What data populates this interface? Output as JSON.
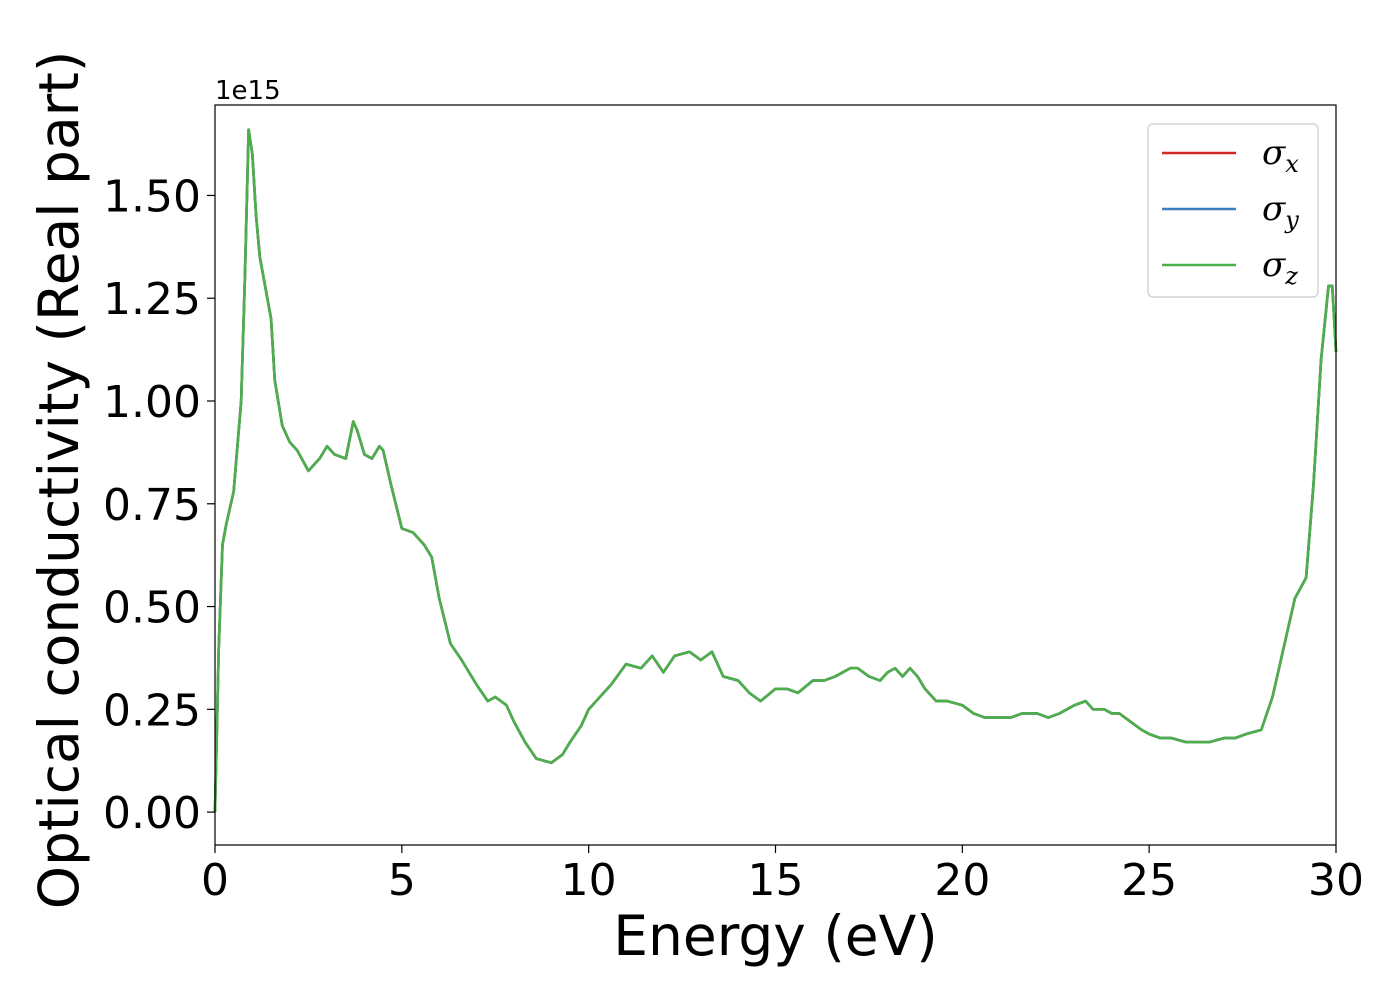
{
  "chart_data": {
    "type": "line",
    "title": "",
    "xlabel": "Energy (eV)",
    "ylabel": "Optical conductivity (Real part)",
    "y_offset_text": "1e15",
    "xlim": [
      0,
      30
    ],
    "ylim": [
      -0.08,
      1.72
    ],
    "xticks": [
      0,
      5,
      10,
      15,
      20,
      25,
      30
    ],
    "xtick_labels": [
      "0",
      "5",
      "10",
      "15",
      "20",
      "25",
      "30"
    ],
    "yticks": [
      0.0,
      0.25,
      0.5,
      0.75,
      1.0,
      1.25,
      1.5
    ],
    "ytick_labels": [
      "0.00",
      "0.25",
      "0.50",
      "0.75",
      "1.00",
      "1.25",
      "1.50"
    ],
    "grid": false,
    "legend_position": "top-right",
    "x": [
      0,
      0.1,
      0.2,
      0.3,
      0.5,
      0.7,
      0.8,
      0.9,
      1.0,
      1.1,
      1.2,
      1.3,
      1.5,
      1.6,
      1.8,
      2.0,
      2.2,
      2.5,
      2.8,
      3.0,
      3.2,
      3.5,
      3.7,
      3.8,
      4.0,
      4.2,
      4.4,
      4.5,
      4.7,
      5.0,
      5.3,
      5.6,
      5.8,
      6.0,
      6.3,
      6.6,
      7.0,
      7.3,
      7.5,
      7.8,
      8.0,
      8.3,
      8.6,
      9.0,
      9.3,
      9.5,
      9.8,
      10.0,
      10.3,
      10.6,
      11.0,
      11.4,
      11.7,
      12.0,
      12.3,
      12.7,
      13.0,
      13.3,
      13.6,
      14.0,
      14.3,
      14.6,
      15.0,
      15.3,
      15.6,
      16.0,
      16.3,
      16.6,
      17.0,
      17.2,
      17.5,
      17.8,
      18.0,
      18.2,
      18.4,
      18.6,
      18.8,
      19.0,
      19.3,
      19.6,
      20.0,
      20.3,
      20.6,
      21.0,
      21.3,
      21.6,
      22.0,
      22.3,
      22.6,
      23.0,
      23.3,
      23.5,
      23.8,
      24.0,
      24.2,
      24.5,
      24.8,
      25.0,
      25.3,
      25.6,
      26.0,
      26.3,
      26.6,
      27.0,
      27.3,
      27.6,
      28.0,
      28.3,
      28.6,
      28.9,
      29.2,
      29.4,
      29.6,
      29.8,
      29.9,
      30.0
    ],
    "series": [
      {
        "name": "σx",
        "color": "#d62728",
        "values": [
          0.0,
          0.4,
          0.65,
          0.7,
          0.78,
          1.0,
          1.3,
          1.66,
          1.6,
          1.45,
          1.35,
          1.3,
          1.2,
          1.05,
          0.94,
          0.9,
          0.88,
          0.83,
          0.86,
          0.89,
          0.87,
          0.86,
          0.95,
          0.93,
          0.87,
          0.86,
          0.89,
          0.88,
          0.8,
          0.69,
          0.68,
          0.65,
          0.62,
          0.52,
          0.41,
          0.37,
          0.31,
          0.27,
          0.28,
          0.26,
          0.22,
          0.17,
          0.13,
          0.12,
          0.14,
          0.17,
          0.21,
          0.25,
          0.28,
          0.31,
          0.36,
          0.35,
          0.38,
          0.34,
          0.38,
          0.39,
          0.37,
          0.39,
          0.33,
          0.32,
          0.29,
          0.27,
          0.3,
          0.3,
          0.29,
          0.32,
          0.32,
          0.33,
          0.35,
          0.35,
          0.33,
          0.32,
          0.34,
          0.35,
          0.33,
          0.35,
          0.33,
          0.3,
          0.27,
          0.27,
          0.26,
          0.24,
          0.23,
          0.23,
          0.23,
          0.24,
          0.24,
          0.23,
          0.24,
          0.26,
          0.27,
          0.25,
          0.25,
          0.24,
          0.24,
          0.22,
          0.2,
          0.19,
          0.18,
          0.18,
          0.17,
          0.17,
          0.17,
          0.18,
          0.18,
          0.19,
          0.2,
          0.28,
          0.4,
          0.52,
          0.57,
          0.8,
          1.1,
          1.28,
          1.28,
          1.12
        ]
      },
      {
        "name": "σy",
        "color": "#3a7ebf",
        "values": [
          0.0,
          0.4,
          0.65,
          0.7,
          0.78,
          1.0,
          1.3,
          1.66,
          1.6,
          1.45,
          1.35,
          1.3,
          1.2,
          1.05,
          0.94,
          0.9,
          0.88,
          0.83,
          0.86,
          0.89,
          0.87,
          0.86,
          0.95,
          0.93,
          0.87,
          0.86,
          0.89,
          0.88,
          0.8,
          0.69,
          0.68,
          0.65,
          0.62,
          0.52,
          0.41,
          0.37,
          0.31,
          0.27,
          0.28,
          0.26,
          0.22,
          0.17,
          0.13,
          0.12,
          0.14,
          0.17,
          0.21,
          0.25,
          0.28,
          0.31,
          0.36,
          0.35,
          0.38,
          0.34,
          0.38,
          0.39,
          0.37,
          0.39,
          0.33,
          0.32,
          0.29,
          0.27,
          0.3,
          0.3,
          0.29,
          0.32,
          0.32,
          0.33,
          0.35,
          0.35,
          0.33,
          0.32,
          0.34,
          0.35,
          0.33,
          0.35,
          0.33,
          0.3,
          0.27,
          0.27,
          0.26,
          0.24,
          0.23,
          0.23,
          0.23,
          0.24,
          0.24,
          0.23,
          0.24,
          0.26,
          0.27,
          0.25,
          0.25,
          0.24,
          0.24,
          0.22,
          0.2,
          0.19,
          0.18,
          0.18,
          0.17,
          0.17,
          0.17,
          0.18,
          0.18,
          0.19,
          0.2,
          0.28,
          0.4,
          0.52,
          0.57,
          0.8,
          1.1,
          1.28,
          1.28,
          1.12
        ]
      },
      {
        "name": "σz",
        "color": "#4daf4a",
        "values": [
          0.0,
          0.4,
          0.65,
          0.7,
          0.78,
          1.0,
          1.3,
          1.66,
          1.6,
          1.45,
          1.35,
          1.3,
          1.2,
          1.05,
          0.94,
          0.9,
          0.88,
          0.83,
          0.86,
          0.89,
          0.87,
          0.86,
          0.95,
          0.93,
          0.87,
          0.86,
          0.89,
          0.88,
          0.8,
          0.69,
          0.68,
          0.65,
          0.62,
          0.52,
          0.41,
          0.37,
          0.31,
          0.27,
          0.28,
          0.26,
          0.22,
          0.17,
          0.13,
          0.12,
          0.14,
          0.17,
          0.21,
          0.25,
          0.28,
          0.31,
          0.36,
          0.35,
          0.38,
          0.34,
          0.38,
          0.39,
          0.37,
          0.39,
          0.33,
          0.32,
          0.29,
          0.27,
          0.3,
          0.3,
          0.29,
          0.32,
          0.32,
          0.33,
          0.35,
          0.35,
          0.33,
          0.32,
          0.34,
          0.35,
          0.33,
          0.35,
          0.33,
          0.3,
          0.27,
          0.27,
          0.26,
          0.24,
          0.23,
          0.23,
          0.23,
          0.24,
          0.24,
          0.23,
          0.24,
          0.26,
          0.27,
          0.25,
          0.25,
          0.24,
          0.24,
          0.22,
          0.2,
          0.19,
          0.18,
          0.18,
          0.17,
          0.17,
          0.17,
          0.18,
          0.18,
          0.19,
          0.2,
          0.28,
          0.4,
          0.52,
          0.57,
          0.8,
          1.1,
          1.28,
          1.28,
          1.12
        ]
      }
    ],
    "legend": [
      {
        "symbol": "σ",
        "sub": "x",
        "color": "#d62728"
      },
      {
        "symbol": "σ",
        "sub": "y",
        "color": "#3a7ebf"
      },
      {
        "symbol": "σ",
        "sub": "z",
        "color": "#4daf4a"
      }
    ]
  }
}
